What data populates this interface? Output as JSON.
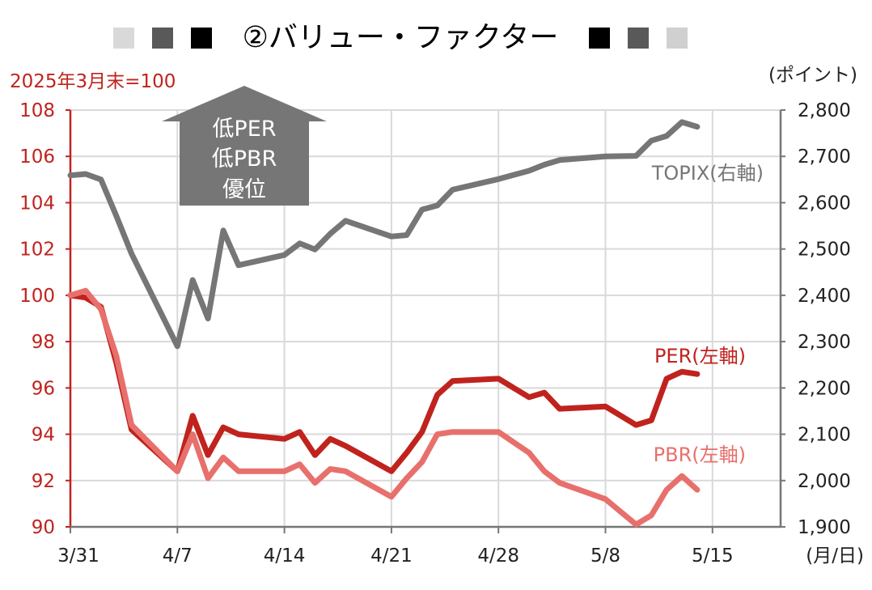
{
  "chart_data": {
    "type": "line",
    "title": "②バリュー・ファクター",
    "left_axis_note": "2025年3月末=100",
    "right_axis_unit": "(ポイント)",
    "x_unit": "(月/日)",
    "x_tick_labels": [
      "3/31",
      "4/7",
      "4/14",
      "4/21",
      "4/28",
      "5/8",
      "5/15"
    ],
    "left_axis": {
      "ylim": [
        90,
        108
      ],
      "ticks": [
        90,
        92,
        94,
        96,
        98,
        100,
        102,
        104,
        106,
        108
      ]
    },
    "right_axis": {
      "ylim": [
        1900,
        2800
      ],
      "ticks": [
        "1,900",
        "2,000",
        "2,100",
        "2,200",
        "2,300",
        "2,400",
        "2,500",
        "2,600",
        "2,700",
        "2,800"
      ]
    },
    "grid": true,
    "annotation": {
      "lines": [
        "低PER",
        "低PBR",
        "優位"
      ]
    },
    "series": [
      {
        "name": "TOPIX(右軸)",
        "axis": "right",
        "color": "#767676",
        "values": [
          2659,
          2662,
          2650,
          2572,
          2490,
          2290,
          2433,
          2350,
          2540,
          2465,
          2487,
          2512,
          2499,
          2533,
          2561,
          2527,
          2530,
          2585,
          2594,
          2628,
          2651,
          2669,
          2682,
          2692,
          2700,
          2701,
          2734,
          2744,
          2774,
          2764
        ]
      },
      {
        "name": "PER(左軸)",
        "axis": "left",
        "color": "#c0231e",
        "values": [
          100.0,
          99.9,
          99.5,
          97.1,
          94.2,
          92.4,
          94.8,
          93.1,
          94.3,
          94.0,
          93.8,
          94.1,
          93.1,
          93.8,
          93.5,
          92.4,
          93.2,
          94.1,
          95.7,
          96.3,
          96.4,
          95.6,
          95.8,
          95.1,
          95.2,
          94.4,
          94.6,
          96.4,
          96.7,
          96.6
        ]
      },
      {
        "name": "PBR(左軸)",
        "axis": "left",
        "color": "#e8706c",
        "values": [
          100.0,
          100.2,
          99.4,
          97.4,
          94.4,
          92.4,
          94.0,
          92.1,
          93.0,
          92.4,
          92.4,
          92.7,
          91.9,
          92.5,
          92.4,
          91.3,
          92.1,
          92.8,
          94.0,
          94.1,
          94.1,
          93.2,
          92.4,
          91.9,
          91.2,
          90.1,
          90.5,
          91.6,
          92.2,
          91.6
        ]
      }
    ]
  },
  "legend_squares": {
    "left": [
      "#d9d9d9",
      "#595959",
      "#000000"
    ],
    "right": [
      "#000000",
      "#595959",
      "#d0d0d0"
    ]
  },
  "colors": {
    "left_axis": "#c0231e",
    "right_axis": "#767676",
    "grid": "#d9d9d9",
    "arrow": "#767676"
  }
}
